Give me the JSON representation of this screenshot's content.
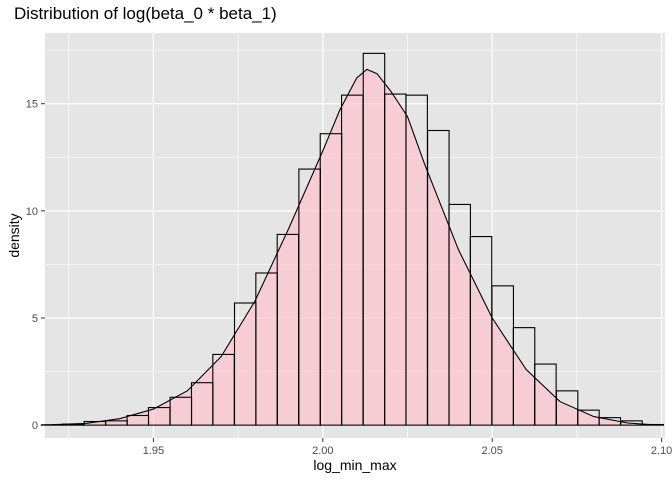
{
  "chart_data": {
    "type": "bar",
    "title": "Distribution of log(beta_0 * beta_1)",
    "xlabel": "log_min_max",
    "ylabel": "density",
    "xlim": [
      1.918,
      2.101
    ],
    "ylim": [
      -0.6,
      18.3
    ],
    "x_ticks": [
      1.95,
      2.0,
      2.05,
      2.1
    ],
    "x_tick_labels": [
      "1.95",
      "2.00",
      "2.05",
      "2.10"
    ],
    "y_ticks": [
      0,
      5,
      10,
      15
    ],
    "y_tick_labels": [
      "0",
      "5",
      "10",
      "15"
    ],
    "grid": true,
    "legend": "none",
    "bin_width": 0.00633,
    "bin_centers": [
      1.9201,
      1.9264,
      1.9327,
      1.9391,
      1.9454,
      1.9517,
      1.9581,
      1.9644,
      1.9707,
      1.9771,
      1.9834,
      1.9897,
      1.9961,
      2.0024,
      2.0087,
      2.0151,
      2.0214,
      2.0277,
      2.0341,
      2.0404,
      2.0467,
      2.0531,
      2.0594,
      2.0657,
      2.0721,
      2.0784,
      2.0847,
      2.0911,
      2.0974
    ],
    "values": [
      0.02,
      0.05,
      0.17,
      0.2,
      0.45,
      0.82,
      1.3,
      1.98,
      3.3,
      5.7,
      7.1,
      8.9,
      11.95,
      13.6,
      15.4,
      17.35,
      15.45,
      15.4,
      13.75,
      10.3,
      8.8,
      6.5,
      4.55,
      2.85,
      1.6,
      0.7,
      0.35,
      0.2,
      0.03
    ],
    "density_curve": {
      "x": [
        1.92,
        1.93,
        1.94,
        1.95,
        1.96,
        1.97,
        1.98,
        1.99,
        2.0,
        2.005,
        2.01,
        2.013,
        2.016,
        2.02,
        2.025,
        2.03,
        2.04,
        2.05,
        2.06,
        2.07,
        2.08,
        2.09,
        2.097
      ],
      "y": [
        0.02,
        0.08,
        0.3,
        0.75,
        1.6,
        3.2,
        5.8,
        9.2,
        12.8,
        14.7,
        16.2,
        16.6,
        16.4,
        15.6,
        14.4,
        12.2,
        8.2,
        5.0,
        2.6,
        1.1,
        0.4,
        0.1,
        0.02
      ]
    },
    "colors": {
      "panel": "#e5e5e5",
      "grid": "#ffffff",
      "bar_outline": "#000000",
      "density_fill": "#ffc0cb",
      "density_line": "#000000"
    }
  }
}
